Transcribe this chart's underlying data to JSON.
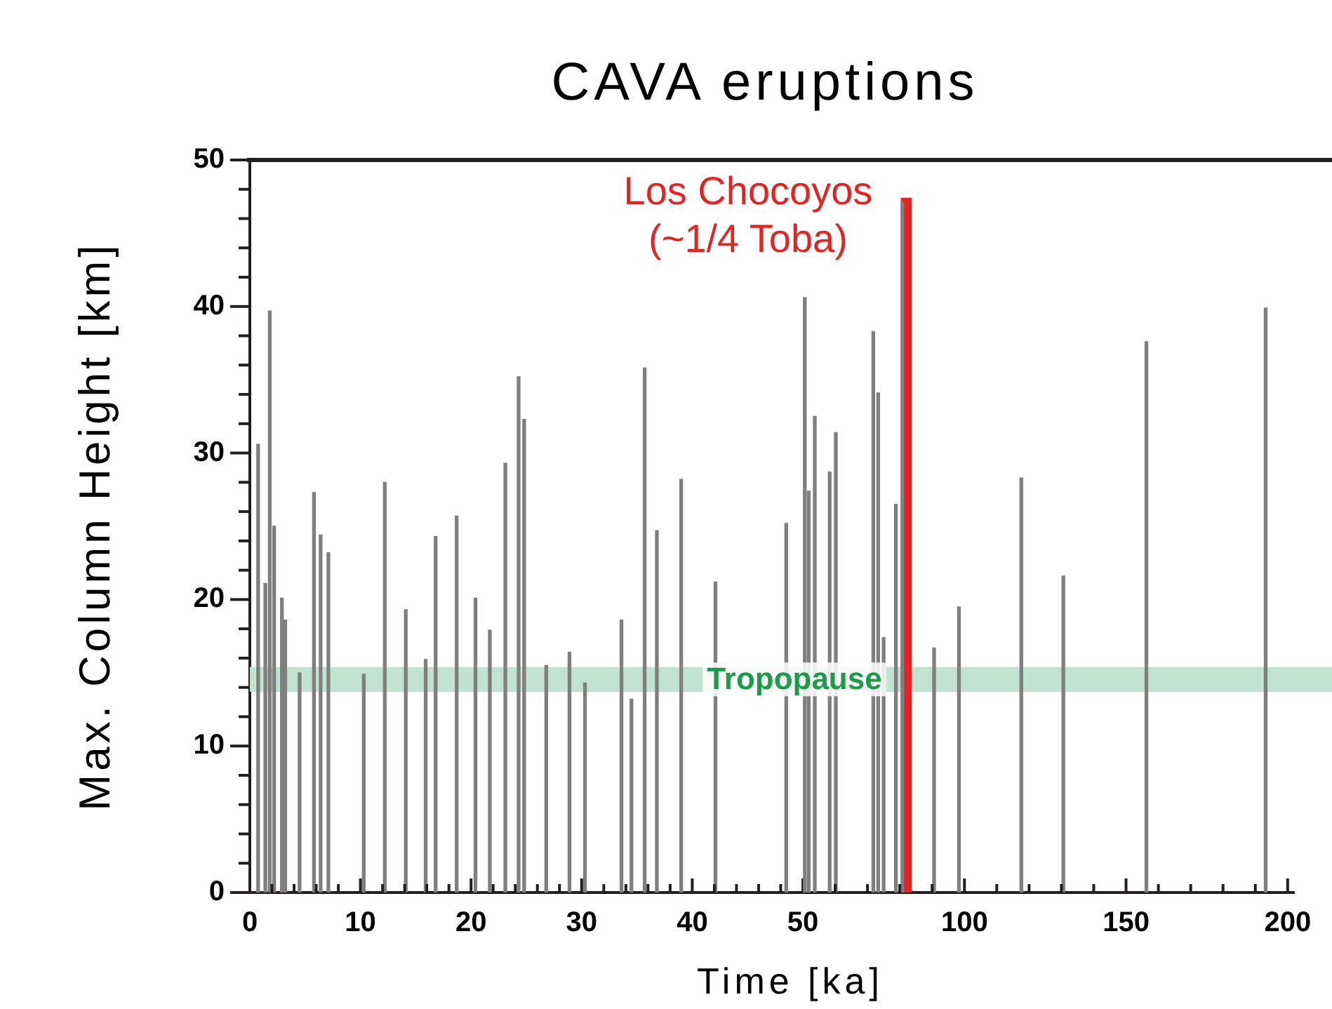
{
  "chart_data": [
    {
      "type": "bar",
      "title": "CAVA eruptions",
      "xlabel": "Time [ka]",
      "ylabel": "Max. Column Height [km]",
      "xlim": [
        0,
        50
      ],
      "ylim": [
        0,
        50
      ],
      "xticks": [
        0,
        {
          "value": 2,
          "label": null
        },
        {
          "value": 4,
          "label": null
        },
        {
          "value": 6,
          "label": null
        },
        {
          "value": 8,
          "label": null
        },
        10,
        {
          "value": 12,
          "label": null
        },
        {
          "value": 14,
          "label": null
        },
        {
          "value": 16,
          "label": null
        },
        {
          "value": 18,
          "label": null
        },
        20,
        {
          "value": 22,
          "label": null
        },
        {
          "value": 24,
          "label": null
        },
        {
          "value": 26,
          "label": null
        },
        {
          "value": 28,
          "label": null
        },
        30,
        {
          "value": 32,
          "label": null
        },
        {
          "value": 34,
          "label": null
        },
        {
          "value": 36,
          "label": null
        },
        {
          "value": 38,
          "label": null
        },
        40,
        {
          "value": 42,
          "label": null
        },
        {
          "value": 44,
          "label": null
        },
        {
          "value": 46,
          "label": null
        },
        {
          "value": 48,
          "label": null
        },
        50
      ],
      "yticks": [
        0,
        {
          "value": 2,
          "label": null
        },
        {
          "value": 4,
          "label": null
        },
        {
          "value": 6,
          "label": null
        },
        {
          "value": 8,
          "label": null
        },
        10,
        {
          "value": 12,
          "label": null
        },
        {
          "value": 14,
          "label": null
        },
        {
          "value": 16,
          "label": null
        },
        {
          "value": 18,
          "label": null
        },
        20,
        {
          "value": 22,
          "label": null
        },
        {
          "value": 24,
          "label": null
        },
        {
          "value": 26,
          "label": null
        },
        {
          "value": 28,
          "label": null
        },
        30,
        {
          "value": 32,
          "label": null
        },
        {
          "value": 34,
          "label": null
        },
        {
          "value": 36,
          "label": null
        },
        {
          "value": 38,
          "label": null
        },
        40,
        {
          "value": 42,
          "label": null
        },
        {
          "value": 44,
          "label": null
        },
        {
          "value": 46,
          "label": null
        },
        {
          "value": 48,
          "label": null
        },
        50
      ],
      "series": [
        {
          "color": "#7f7f7f",
          "x": [
            0.75,
            1.4,
            1.8,
            2.2,
            2.9,
            3.2,
            4.5,
            5.8,
            6.4,
            7.1,
            10.3,
            12.2,
            14.1,
            15.9,
            16.8,
            18.7,
            20.4,
            21.7,
            23.1,
            24.3,
            24.8,
            26.8,
            28.9,
            30.3,
            33.6,
            34.5,
            35.7,
            36.8,
            39.0,
            42.1,
            48.5
          ],
          "values": [
            30.6,
            21.1,
            39.7,
            25.0,
            20.1,
            18.6,
            15.0,
            27.3,
            24.4,
            23.2,
            14.9,
            28.0,
            19.3,
            15.9,
            24.3,
            25.7,
            20.1,
            17.9,
            29.3,
            35.2,
            32.3,
            15.5,
            16.4,
            14.3,
            18.6,
            13.2,
            35.8,
            24.7,
            28.2,
            21.2,
            25.2
          ]
        }
      ],
      "bands": [
        {
          "axis": "y",
          "from": 13.7,
          "to": 15.4,
          "color": "#c2e3d1"
        }
      ]
    },
    {
      "type": "bar",
      "tick_labels": "x",
      "xlim": [
        50,
        202
      ],
      "ylim": [
        0,
        50
      ],
      "xticks": [
        {
          "value": 60,
          "label": null
        },
        {
          "value": 70,
          "label": null
        },
        {
          "value": 80,
          "label": null
        },
        {
          "value": 90,
          "label": null
        },
        100,
        {
          "value": 110,
          "label": null
        },
        {
          "value": 120,
          "label": null
        },
        {
          "value": 130,
          "label": null
        },
        {
          "value": 140,
          "label": null
        },
        150,
        {
          "value": 160,
          "label": null
        },
        {
          "value": 170,
          "label": null
        },
        {
          "value": 180,
          "label": null
        },
        {
          "value": 190,
          "label": null
        },
        200
      ],
      "series": [
        {
          "color": "#7f7f7f",
          "x": [
            50.6,
            51.8,
            53.7,
            58.3,
            60.2,
            71.8,
            73.3,
            75.0,
            78.8,
            80.8,
            90.6,
            98.3,
            117.6,
            130.6,
            156.3,
            193.2
          ],
          "values": [
            40.6,
            27.4,
            32.5,
            28.7,
            31.4,
            38.3,
            34.1,
            17.4,
            26.5,
            47.1,
            16.7,
            19.5,
            28.3,
            21.6,
            37.6,
            39.9
          ]
        },
        {
          "name": "Los Chocoyos\n(~1/4 Toba)",
          "color": "#e52421",
          "x": [
            82.0
          ],
          "values": [
            47.4
          ]
        }
      ],
      "bands": [
        {
          "axis": "y",
          "from": 13.7,
          "to": 15.4,
          "label": "Tropopause",
          "color": "#c2e3d1"
        }
      ]
    }
  ]
}
